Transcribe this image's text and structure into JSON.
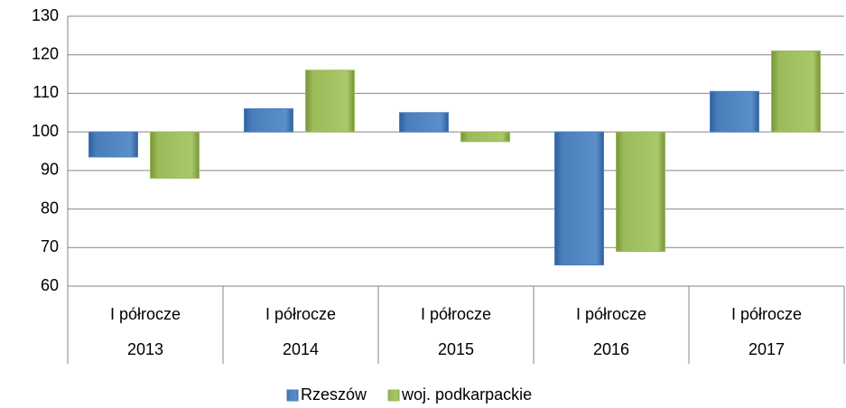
{
  "chart_data": {
    "type": "bar",
    "period_labels": [
      "I półrocze",
      "I półrocze",
      "I półrocze",
      "I półrocze",
      "I półrocze"
    ],
    "categories": [
      "2013",
      "2014",
      "2015",
      "2016",
      "2017"
    ],
    "bar_base": 100,
    "series": [
      {
        "name": "Rzeszów",
        "color": "#4a7ebb",
        "values": [
          93.5,
          106,
          105,
          65.5,
          110.5
        ]
      },
      {
        "name": "woj. podkarpackie",
        "color": "#9bbb59",
        "values": [
          88,
          116,
          97.5,
          69,
          121
        ]
      }
    ],
    "ylim": [
      60,
      130
    ],
    "yticks": [
      60,
      70,
      80,
      90,
      100,
      110,
      120,
      130
    ],
    "grid": true,
    "legend": "bottom"
  }
}
